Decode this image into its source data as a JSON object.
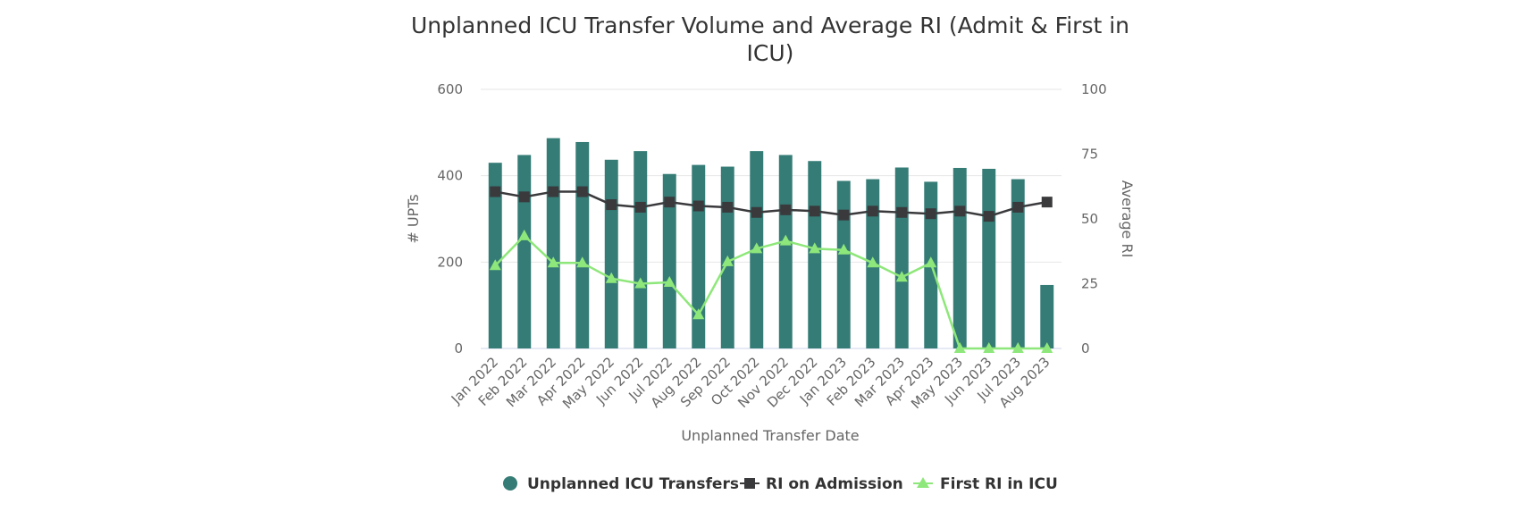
{
  "chart_data": {
    "type": "bar",
    "title_line1": "Unplanned ICU Transfer Volume and Average RI (Admit & First in",
    "title_line2": "ICU)",
    "xlabel": "Unplanned Transfer Date",
    "ylabel_left": "# UPTs",
    "ylabel_right": "Average RI",
    "ylim_left": [
      0,
      600
    ],
    "ylim_right": [
      0,
      100
    ],
    "yticks_left": [
      "0",
      "200",
      "400",
      "600"
    ],
    "yticks_right": [
      "0",
      "25",
      "50",
      "75",
      "100"
    ],
    "grid": true,
    "legend_position": "bottom",
    "categories": [
      "Jan 2022",
      "Feb 2022",
      "Mar 2022",
      "Apr 2022",
      "May 2022",
      "Jun 2022",
      "Jul 2022",
      "Aug 2022",
      "Sep 2022",
      "Oct 2022",
      "Nov 2022",
      "Dec 2022",
      "Jan 2023",
      "Feb 2023",
      "Mar 2023",
      "Apr 2023",
      "May 2023",
      "Jun 2023",
      "Jul 2023",
      "Aug 2023"
    ],
    "series": [
      {
        "name": "Unplanned ICU Transfers",
        "type": "bar",
        "axis": "left",
        "color": "#357C76",
        "values": [
          430,
          448,
          487,
          478,
          437,
          457,
          404,
          425,
          421,
          457,
          448,
          434,
          388,
          392,
          419,
          386,
          418,
          416,
          392,
          147
        ]
      },
      {
        "name": "RI on Admission",
        "type": "line",
        "axis": "right",
        "color": "#3A3A3D",
        "marker": "square",
        "values": [
          60.5,
          58.5,
          60.5,
          60.5,
          55.5,
          54.5,
          56.5,
          55.0,
          54.5,
          52.5,
          53.5,
          53.0,
          51.5,
          53.0,
          52.5,
          52.0,
          53.0,
          51.0,
          54.5,
          56.5
        ]
      },
      {
        "name": "First RI in ICU",
        "type": "line",
        "axis": "right",
        "color": "#8EE77A",
        "marker": "triangle",
        "values": [
          32.0,
          43.5,
          33.0,
          33.0,
          27.0,
          25.0,
          25.5,
          13.0,
          33.5,
          38.5,
          41.5,
          38.5,
          38.0,
          33.0,
          27.5,
          33.0,
          0,
          0,
          0,
          0
        ]
      }
    ]
  }
}
